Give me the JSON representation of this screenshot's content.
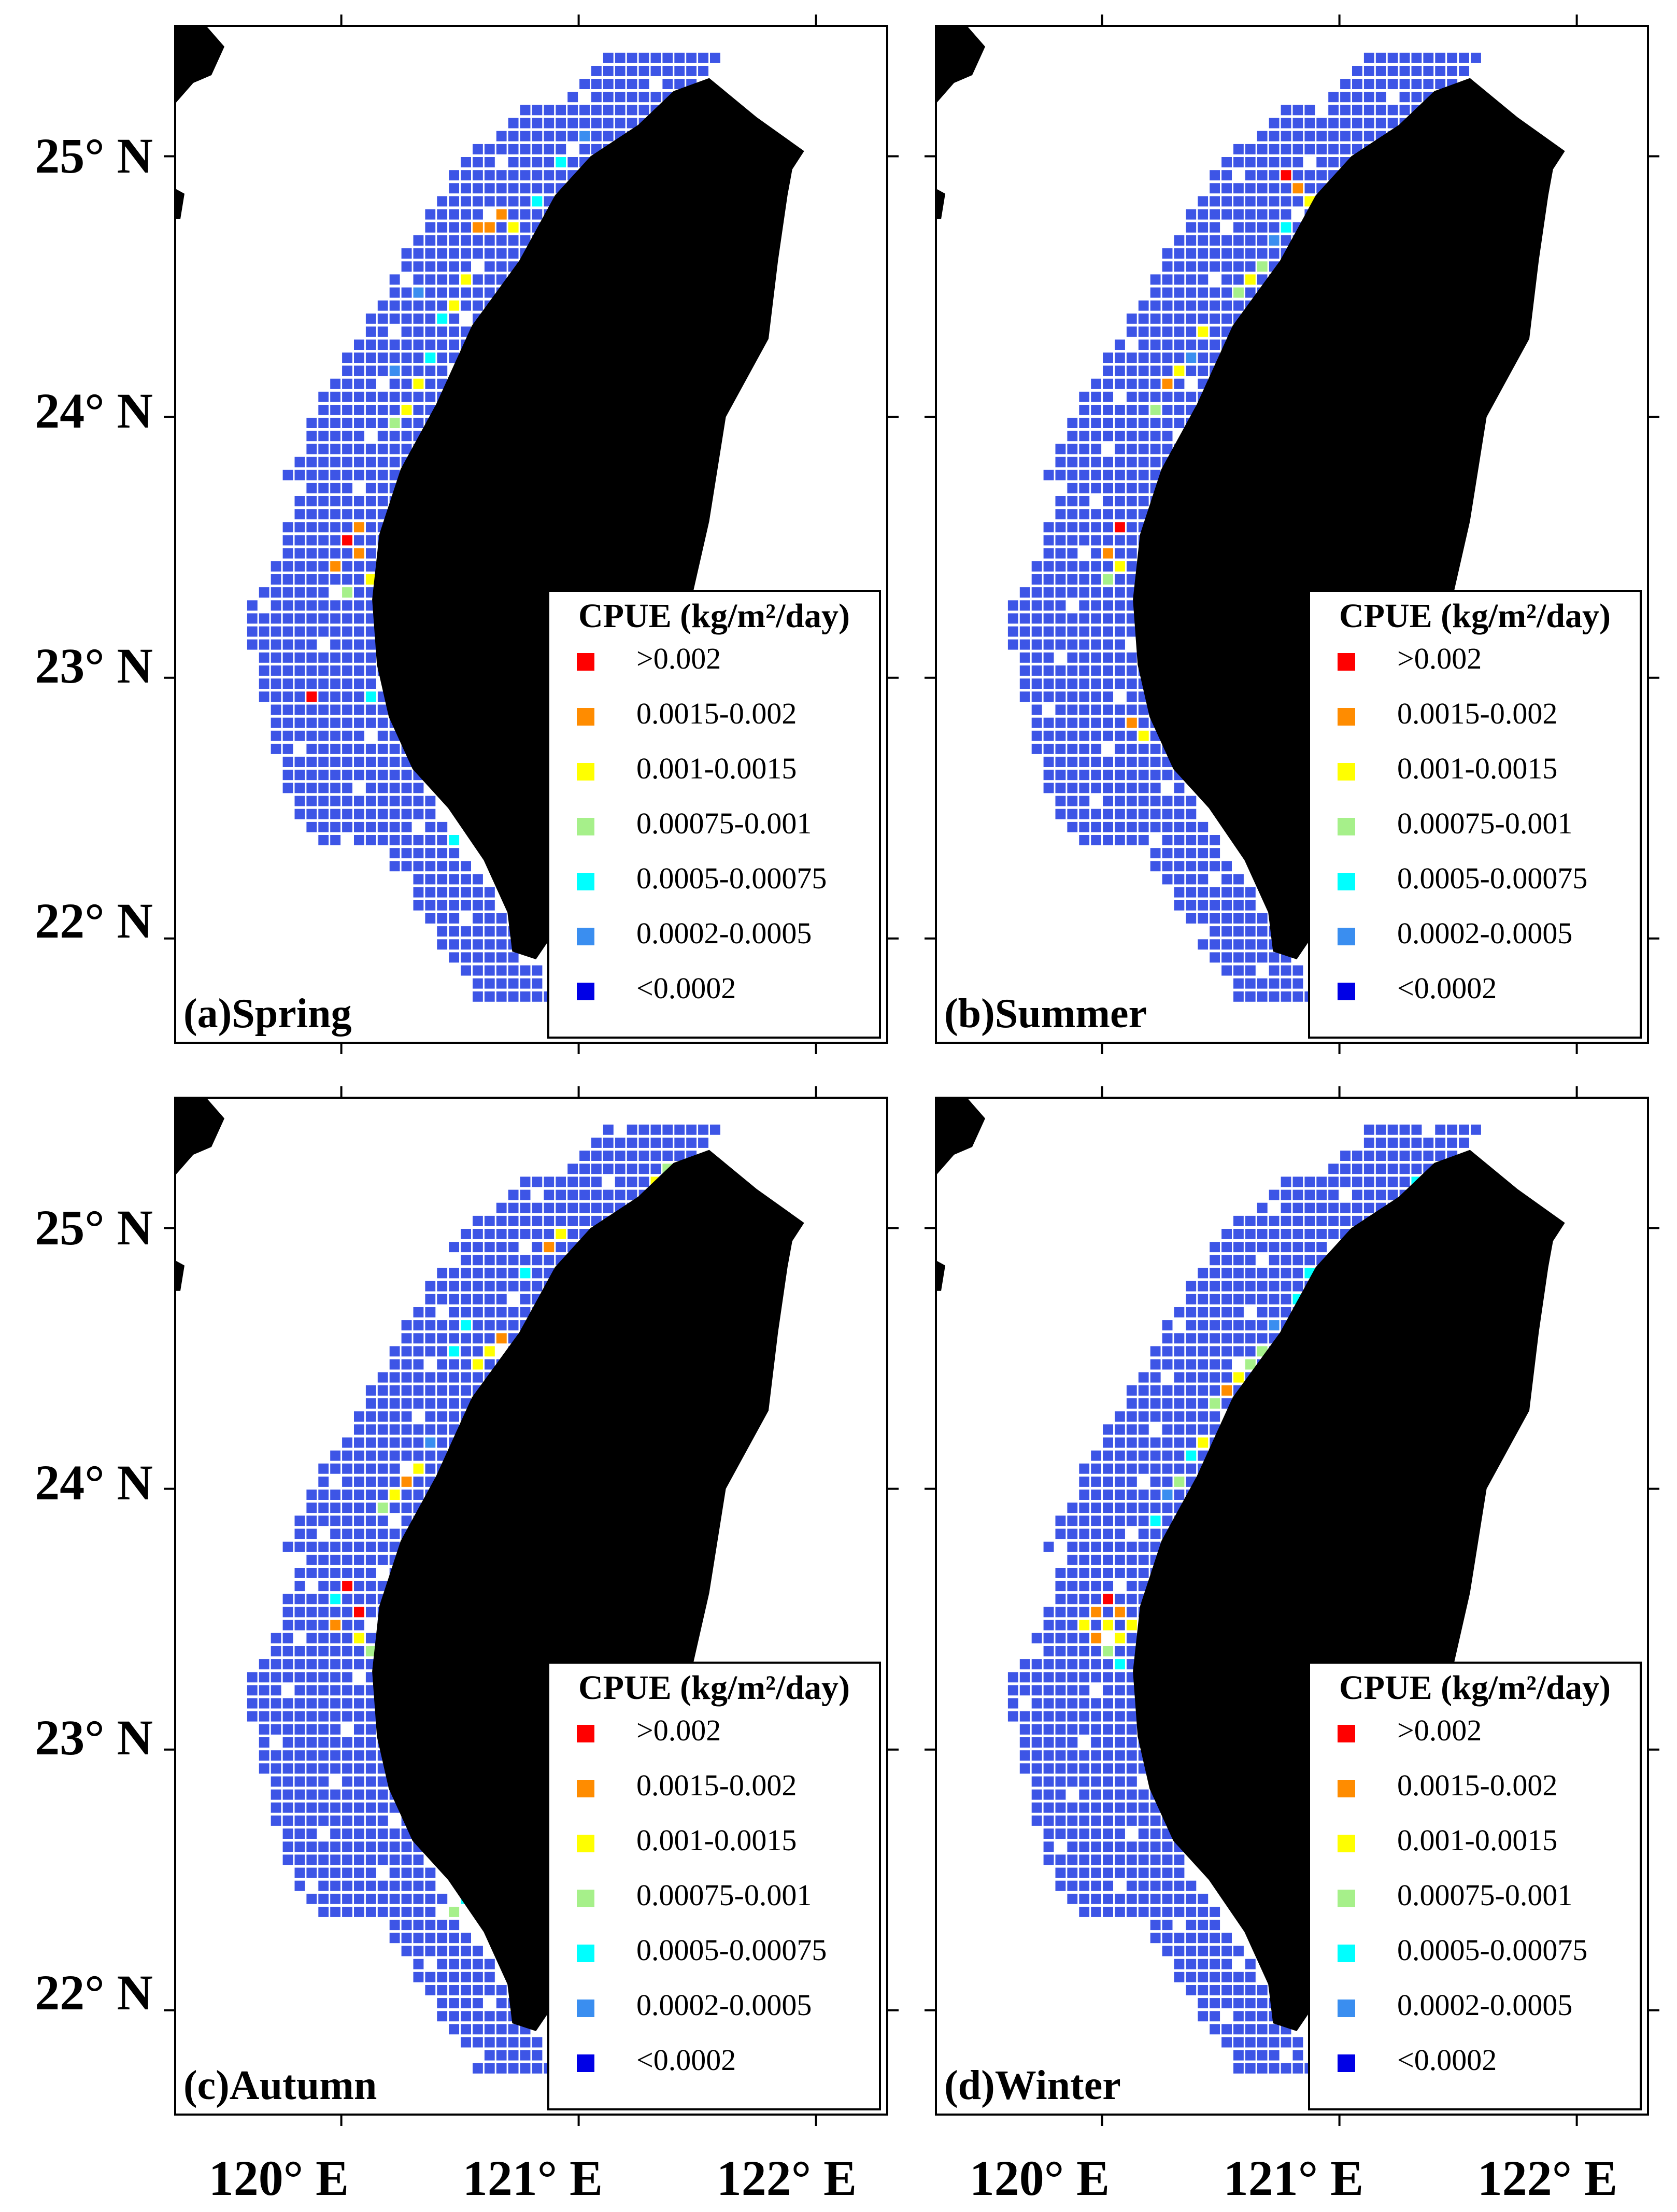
{
  "figure": {
    "lat_labels": [
      "25° N",
      "24° N",
      "23° N",
      "22° N"
    ],
    "lon_labels": [
      "120° E",
      "121° E",
      "122° E"
    ],
    "lat_values": [
      25,
      24,
      23,
      22
    ],
    "lon_values": [
      120,
      121,
      122
    ],
    "map_extent": {
      "lon": [
        119.3,
        122.3
      ],
      "lat": [
        21.6,
        25.5
      ]
    }
  },
  "legend": {
    "title": "CPUE (kg/m²/day)",
    "classes": [
      {
        "label": ">0.002",
        "color": "#ff0000"
      },
      {
        "label": "0.0015-0.002",
        "color": "#ff8c00"
      },
      {
        "label": "0.001-0.0015",
        "color": "#ffff00"
      },
      {
        "label": "0.00075-0.001",
        "color": "#a6f08a"
      },
      {
        "label": "0.0005-0.00075",
        "color": "#00ffff"
      },
      {
        "label": "0.0002-0.0005",
        "color": "#3a8ef0"
      },
      {
        "label": "<0.0002",
        "color": "#0000e6"
      }
    ]
  },
  "colors": {
    "land": "#000000",
    "grid_base": "#3d55e6",
    "grid_outline": "#ffffff",
    "frame": "#000000"
  },
  "panels": [
    {
      "label": "(a)Spring",
      "hotspots": [
        {
          "lon": 120.0,
          "lat": 23.55,
          "class": 0
        },
        {
          "lon": 120.05,
          "lat": 23.5,
          "class": 1
        },
        {
          "lon": 119.95,
          "lat": 23.45,
          "class": 1
        },
        {
          "lon": 120.1,
          "lat": 23.4,
          "class": 2
        },
        {
          "lon": 120.05,
          "lat": 23.6,
          "class": 1
        },
        {
          "lon": 120.0,
          "lat": 23.35,
          "class": 3
        },
        {
          "lon": 120.55,
          "lat": 24.75,
          "class": 1
        },
        {
          "lon": 120.6,
          "lat": 24.75,
          "class": 1
        },
        {
          "lon": 120.65,
          "lat": 24.8,
          "class": 1
        },
        {
          "lon": 120.7,
          "lat": 24.75,
          "class": 2
        },
        {
          "lon": 120.5,
          "lat": 24.55,
          "class": 2
        },
        {
          "lon": 120.45,
          "lat": 24.45,
          "class": 2
        },
        {
          "lon": 120.3,
          "lat": 24.15,
          "class": 2
        },
        {
          "lon": 120.25,
          "lat": 24.05,
          "class": 2
        },
        {
          "lon": 120.2,
          "lat": 24.0,
          "class": 3
        },
        {
          "lon": 120.35,
          "lat": 24.25,
          "class": 4
        },
        {
          "lon": 120.4,
          "lat": 24.4,
          "class": 4
        },
        {
          "lon": 120.8,
          "lat": 24.85,
          "class": 4
        },
        {
          "lon": 120.9,
          "lat": 25.0,
          "class": 4
        },
        {
          "lon": 121.4,
          "lat": 25.2,
          "class": 1
        },
        {
          "lon": 121.35,
          "lat": 25.15,
          "class": 3
        },
        {
          "lon": 121.0,
          "lat": 25.1,
          "class": 5
        },
        {
          "lon": 120.1,
          "lat": 22.95,
          "class": 4
        },
        {
          "lon": 119.85,
          "lat": 22.95,
          "class": 0
        },
        {
          "lon": 120.45,
          "lat": 22.4,
          "class": 4
        },
        {
          "lon": 120.55,
          "lat": 22.45,
          "class": 5
        },
        {
          "lon": 120.2,
          "lat": 24.2,
          "class": 5
        },
        {
          "lon": 120.3,
          "lat": 24.5,
          "class": 5
        }
      ]
    },
    {
      "label": "(b)Summer",
      "hotspots": [
        {
          "lon": 120.05,
          "lat": 23.6,
          "class": 0
        },
        {
          "lon": 120.0,
          "lat": 23.5,
          "class": 1
        },
        {
          "lon": 120.05,
          "lat": 23.45,
          "class": 2
        },
        {
          "lon": 120.0,
          "lat": 23.4,
          "class": 3
        },
        {
          "lon": 120.15,
          "lat": 22.8,
          "class": 2
        },
        {
          "lon": 120.1,
          "lat": 22.85,
          "class": 1
        },
        {
          "lon": 120.2,
          "lat": 22.9,
          "class": 4
        },
        {
          "lon": 120.25,
          "lat": 24.15,
          "class": 1
        },
        {
          "lon": 120.3,
          "lat": 24.2,
          "class": 2
        },
        {
          "lon": 120.2,
          "lat": 24.05,
          "class": 3
        },
        {
          "lon": 120.4,
          "lat": 24.35,
          "class": 2
        },
        {
          "lon": 120.55,
          "lat": 24.5,
          "class": 3
        },
        {
          "lon": 120.6,
          "lat": 24.55,
          "class": 2
        },
        {
          "lon": 120.65,
          "lat": 24.6,
          "class": 3
        },
        {
          "lon": 120.75,
          "lat": 24.75,
          "class": 4
        },
        {
          "lon": 120.85,
          "lat": 24.85,
          "class": 2
        },
        {
          "lon": 120.8,
          "lat": 24.9,
          "class": 1
        },
        {
          "lon": 120.75,
          "lat": 24.95,
          "class": 0
        },
        {
          "lon": 121.35,
          "lat": 25.2,
          "class": 1
        },
        {
          "lon": 121.4,
          "lat": 25.25,
          "class": 0
        },
        {
          "lon": 121.3,
          "lat": 25.15,
          "class": 4
        },
        {
          "lon": 120.7,
          "lat": 24.7,
          "class": 5
        },
        {
          "lon": 120.35,
          "lat": 24.25,
          "class": 5
        }
      ]
    },
    {
      "label": "(c)Autumn",
      "hotspots": [
        {
          "lon": 120.0,
          "lat": 23.65,
          "class": 0
        },
        {
          "lon": 120.05,
          "lat": 23.55,
          "class": 0
        },
        {
          "lon": 119.95,
          "lat": 23.5,
          "class": 1
        },
        {
          "lon": 120.05,
          "lat": 23.45,
          "class": 2
        },
        {
          "lon": 120.1,
          "lat": 23.4,
          "class": 3
        },
        {
          "lon": 120.15,
          "lat": 23.35,
          "class": 3
        },
        {
          "lon": 119.95,
          "lat": 23.6,
          "class": 4
        },
        {
          "lon": 120.25,
          "lat": 24.05,
          "class": 1
        },
        {
          "lon": 120.3,
          "lat": 24.1,
          "class": 2
        },
        {
          "lon": 120.2,
          "lat": 24.0,
          "class": 2
        },
        {
          "lon": 120.15,
          "lat": 23.95,
          "class": 3
        },
        {
          "lon": 120.35,
          "lat": 24.2,
          "class": 5
        },
        {
          "lon": 120.6,
          "lat": 24.55,
          "class": 2
        },
        {
          "lon": 120.65,
          "lat": 24.6,
          "class": 1
        },
        {
          "lon": 120.55,
          "lat": 24.5,
          "class": 2
        },
        {
          "lon": 120.5,
          "lat": 24.65,
          "class": 4
        },
        {
          "lon": 120.45,
          "lat": 24.55,
          "class": 4
        },
        {
          "lon": 120.85,
          "lat": 24.95,
          "class": 1
        },
        {
          "lon": 120.9,
          "lat": 25.0,
          "class": 2
        },
        {
          "lon": 120.75,
          "lat": 24.85,
          "class": 4
        },
        {
          "lon": 121.3,
          "lat": 25.2,
          "class": 2
        },
        {
          "lon": 121.35,
          "lat": 25.25,
          "class": 3
        },
        {
          "lon": 120.5,
          "lat": 22.45,
          "class": 4
        },
        {
          "lon": 120.45,
          "lat": 22.4,
          "class": 3
        }
      ]
    },
    {
      "label": "(d)Winter",
      "hotspots": [
        {
          "lon": 120.0,
          "lat": 23.6,
          "class": 0
        },
        {
          "lon": 120.05,
          "lat": 23.55,
          "class": 1
        },
        {
          "lon": 119.95,
          "lat": 23.55,
          "class": 1
        },
        {
          "lon": 120.0,
          "lat": 23.5,
          "class": 2
        },
        {
          "lon": 119.95,
          "lat": 23.45,
          "class": 1
        },
        {
          "lon": 120.05,
          "lat": 23.45,
          "class": 2
        },
        {
          "lon": 120.1,
          "lat": 23.5,
          "class": 2
        },
        {
          "lon": 120.0,
          "lat": 23.4,
          "class": 3
        },
        {
          "lon": 120.05,
          "lat": 23.35,
          "class": 4
        },
        {
          "lon": 119.9,
          "lat": 23.5,
          "class": 2
        },
        {
          "lon": 120.55,
          "lat": 24.45,
          "class": 2
        },
        {
          "lon": 120.6,
          "lat": 24.5,
          "class": 3
        },
        {
          "lon": 120.5,
          "lat": 24.4,
          "class": 1
        },
        {
          "lon": 120.45,
          "lat": 24.35,
          "class": 3
        },
        {
          "lon": 120.65,
          "lat": 24.55,
          "class": 3
        },
        {
          "lon": 120.4,
          "lat": 24.2,
          "class": 2
        },
        {
          "lon": 120.35,
          "lat": 24.15,
          "class": 4
        },
        {
          "lon": 120.3,
          "lat": 24.05,
          "class": 3
        },
        {
          "lon": 120.2,
          "lat": 23.9,
          "class": 4
        },
        {
          "lon": 120.8,
          "lat": 24.75,
          "class": 4
        },
        {
          "lon": 120.85,
          "lat": 24.85,
          "class": 4
        },
        {
          "lon": 121.4,
          "lat": 25.2,
          "class": 2
        },
        {
          "lon": 121.3,
          "lat": 25.2,
          "class": 4
        },
        {
          "lon": 120.55,
          "lat": 22.5,
          "class": 4
        },
        {
          "lon": 120.25,
          "lat": 22.8,
          "class": 4
        },
        {
          "lon": 120.7,
          "lat": 24.65,
          "class": 5
        },
        {
          "lon": 120.25,
          "lat": 24.0,
          "class": 5
        }
      ]
    }
  ]
}
